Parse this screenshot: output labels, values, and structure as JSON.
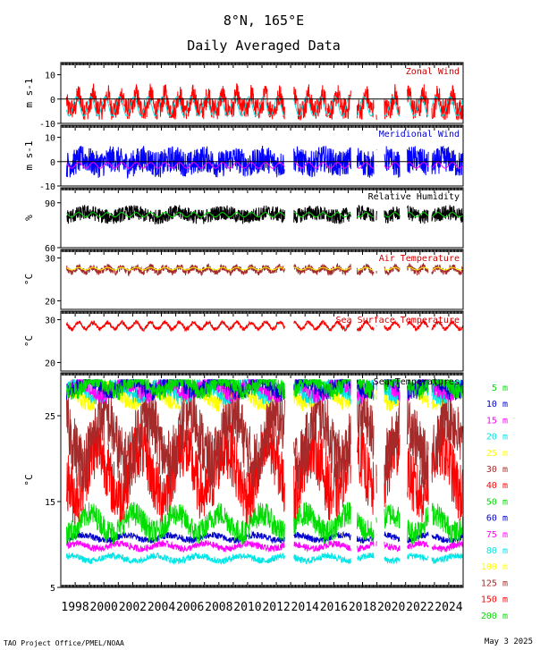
{
  "header": {
    "location": "8°N, 165°E",
    "subtitle": "Daily Averaged Data"
  },
  "footer": {
    "left": "TAO Project Office/PMEL/NOAA",
    "right": "May  3 2025"
  },
  "x_tick_labels": [
    "1998",
    "2000",
    "2002",
    "2004",
    "2006",
    "2008",
    "2010",
    "2012",
    "2014",
    "2016",
    "2018",
    "2020",
    "2022",
    "2024"
  ],
  "chart_data": [
    {
      "type": "line",
      "title": "Zonal Wind",
      "ylabel": "m s-1",
      "ylim": [
        -10,
        15
      ],
      "yticks": [
        "10",
        "0",
        "-10"
      ],
      "xlim": [
        1997,
        2025
      ],
      "zero_line": true,
      "series": [
        {
          "name": "Zonal Wind",
          "color": "#ff0000"
        },
        {
          "name": "climatology",
          "color": "#00e5e5"
        }
      ]
    },
    {
      "type": "line",
      "title": "Meridional Wind",
      "ylabel": "m s-1",
      "ylim": [
        -10,
        15
      ],
      "yticks": [
        "10",
        "0",
        "-10"
      ],
      "xlim": [
        1997,
        2025
      ],
      "zero_line": true,
      "series": [
        {
          "name": "Meridional Wind",
          "color": "#0000ff"
        },
        {
          "name": "climatology",
          "color": "#ff00ff"
        }
      ]
    },
    {
      "type": "line",
      "title": "Relative Humidity",
      "ylabel": "%",
      "ylim": [
        60,
        100
      ],
      "yticks": [
        "90",
        "60"
      ],
      "xlim": [
        1997,
        2025
      ],
      "series": [
        {
          "name": "Relative Humidity",
          "color": "#000000"
        },
        {
          "name": "climatology",
          "color": "#00dd00"
        }
      ]
    },
    {
      "type": "line",
      "title": "Air Temperature",
      "ylabel": "°C",
      "ylim": [
        18,
        32
      ],
      "yticks": [
        "30",
        "20"
      ],
      "xlim": [
        1997,
        2025
      ],
      "series": [
        {
          "name": "Air Temperature",
          "color": "#a52a2a"
        },
        {
          "name": "climatology",
          "color": "#ffff00"
        }
      ]
    },
    {
      "type": "line",
      "title": "Sea Surface Temperature",
      "ylabel": "°C",
      "ylim": [
        18,
        32
      ],
      "yticks": [
        "30",
        "20"
      ],
      "xlim": [
        1997,
        2025
      ],
      "series": [
        {
          "name": "Sea Surface Temperature",
          "color": "#ff0000"
        },
        {
          "name": "climatology",
          "color": "#00e5e5"
        }
      ]
    },
    {
      "type": "line",
      "title": "Sea Temperatures",
      "ylabel": "°C",
      "ylim": [
        5,
        30
      ],
      "yticks": [
        "25",
        "15",
        "5"
      ],
      "xlim": [
        1997,
        2025
      ],
      "series": [
        {
          "name": "5 m",
          "color": "#00dd00",
          "base": 28.6
        },
        {
          "name": "10 m",
          "color": "#0000cc",
          "base": 28.5
        },
        {
          "name": "15 m",
          "color": "#ff00ff",
          "base": 28.2
        },
        {
          "name": "20 m",
          "color": "#00e5e5",
          "base": 28.0
        },
        {
          "name": "25 m",
          "color": "#ffff00",
          "base": 27.3
        },
        {
          "name": "30 m",
          "color": "#a52a2a",
          "base": 22.5
        },
        {
          "name": "40 m",
          "color": "#ff0000",
          "base": 18.5
        },
        {
          "name": "50 m",
          "color": "#00dd00",
          "base": 12.5
        },
        {
          "name": "60 m",
          "color": "#0000cc",
          "base": 10.8
        },
        {
          "name": "75 m",
          "color": "#ff00ff",
          "base": 9.8
        },
        {
          "name": "80 m",
          "color": "#00e5e5",
          "base": 8.4
        },
        {
          "name": "100 m",
          "color": "#ffff00"
        },
        {
          "name": "125 m",
          "color": "#a52a2a"
        },
        {
          "name": "150 m",
          "color": "#ff0000"
        },
        {
          "name": "200 m",
          "color": "#00dd00"
        }
      ]
    }
  ]
}
